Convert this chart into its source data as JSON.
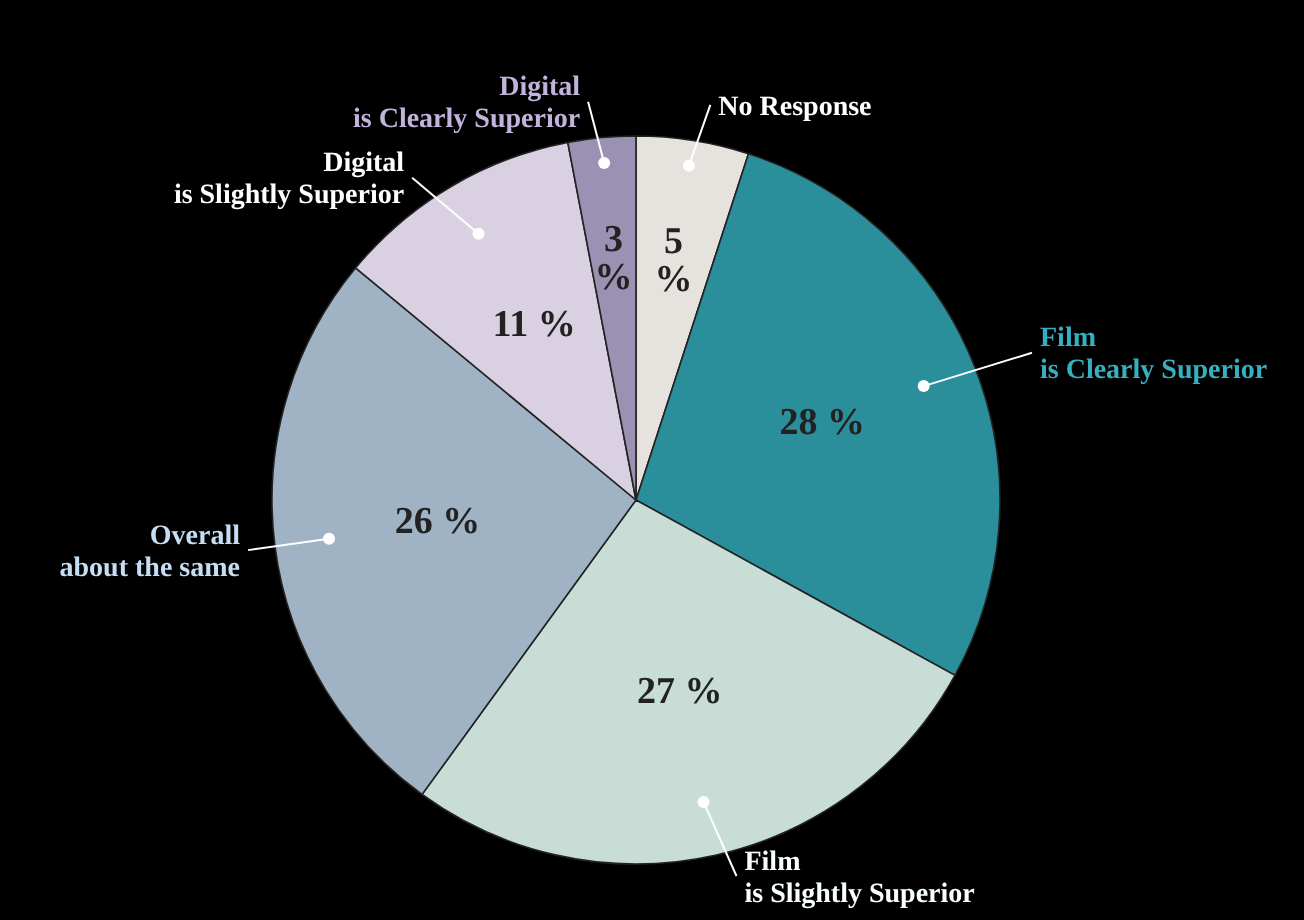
{
  "chart_data": {
    "type": "pie",
    "categories": [
      "No Response",
      "Film\nis Clearly Superior",
      "Film\nis Slightly Superior",
      "Overall\nabout the same",
      "Digital\nis Slightly Superior",
      "Digital\nis Clearly Superior"
    ],
    "values": [
      5,
      28,
      27,
      26,
      11,
      3
    ],
    "value_labels": [
      "5 %",
      "28 %",
      "27 %",
      "26 %",
      "11 %",
      "3 %"
    ],
    "colors": [
      "#e6e2de",
      "#2b8e9b",
      "#c9ddd7",
      "#9fb3c4",
      "#d9d1e1",
      "#9b91b2"
    ]
  }
}
